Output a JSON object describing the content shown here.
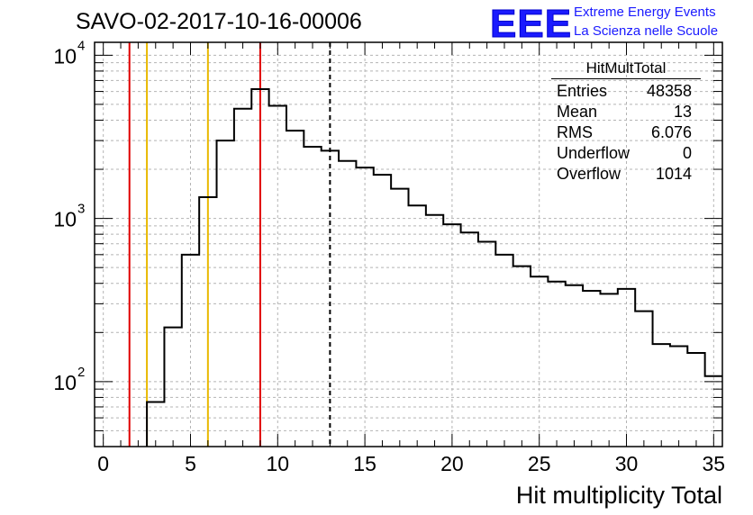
{
  "header": {
    "run_title": "SAVO-02-2017-10-16-00006",
    "logo_text": "EEE",
    "logo_line1": "Extreme Energy Events",
    "logo_line2": "La Scienza nelle Scuole"
  },
  "stats_box": {
    "title": "HitMultTotal",
    "rows": [
      {
        "label": "Entries",
        "value": "48358"
      },
      {
        "label": "Mean",
        "value": "13"
      },
      {
        "label": "RMS",
        "value": "6.076"
      },
      {
        "label": "Underflow",
        "value": "0"
      },
      {
        "label": "Overflow",
        "value": "1014"
      }
    ]
  },
  "chart_data": {
    "type": "histogram",
    "xlabel": "Hit multiplicity Total",
    "ylabel": "",
    "xlim": [
      -0.5,
      35.5
    ],
    "ylim": [
      40,
      12000
    ],
    "log_y": true,
    "grid": true,
    "bin_edges_start": -0.5,
    "bin_width": 1,
    "counts": [
      0,
      0,
      0,
      75,
      215,
      600,
      1350,
      3000,
      4700,
      6200,
      4900,
      3450,
      2750,
      2600,
      2250,
      2050,
      1850,
      1520,
      1200,
      1050,
      920,
      820,
      720,
      600,
      510,
      440,
      410,
      390,
      360,
      345,
      370,
      270,
      170,
      165,
      150,
      108
    ],
    "x_ticks": [
      0,
      5,
      10,
      15,
      20,
      25,
      30,
      35
    ],
    "y_ticks": [
      {
        "value": 100,
        "label": "10",
        "exp": "2"
      },
      {
        "value": 1000,
        "label": "10",
        "exp": "3"
      },
      {
        "value": 10000,
        "label": "10",
        "exp": "4"
      }
    ],
    "vertical_lines": [
      {
        "x": 1.5,
        "color": "#e00000",
        "style": "solid"
      },
      {
        "x": 2.5,
        "color": "#e8b800",
        "style": "solid"
      },
      {
        "x": 6.0,
        "color": "#e8b800",
        "style": "solid"
      },
      {
        "x": 9.0,
        "color": "#e00000",
        "style": "solid"
      },
      {
        "x": 13.0,
        "color": "#000000",
        "style": "dashed"
      }
    ]
  }
}
